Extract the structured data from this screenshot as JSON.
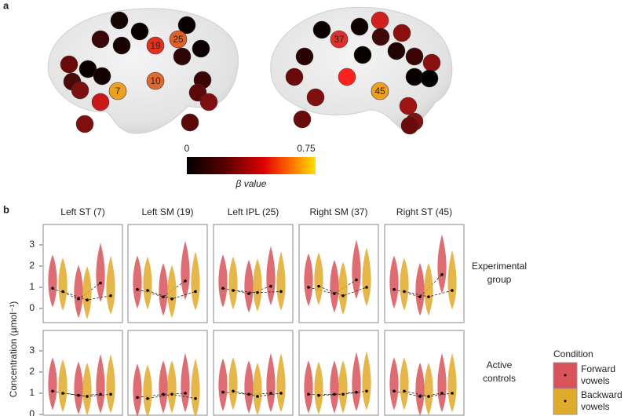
{
  "panel_a": {
    "label": "a",
    "regions": [
      {
        "label": "19",
        "color": "#e0301e"
      },
      {
        "label": "25",
        "color": "#e0602a"
      },
      {
        "label": "7",
        "color": "#f0a020"
      },
      {
        "label": "10",
        "color": "#e0692e"
      },
      {
        "label": "37",
        "color": "#e0302a"
      },
      {
        "label": "45",
        "color": "#f0a020"
      }
    ],
    "colorbar": {
      "min_label": "0",
      "max_label": "0.75",
      "label": "β value"
    }
  },
  "panel_b": {
    "label": "b",
    "columns": [
      "Left ST (7)",
      "Left SM (19)",
      "Left IPL (25)",
      "Right SM (37)",
      "Right ST (45)"
    ],
    "rows": [
      {
        "label": [
          "Experimental",
          "group"
        ]
      },
      {
        "label": [
          "Active",
          "controls"
        ]
      }
    ],
    "y_label": "Concentration (µmol⁻¹)",
    "ylim": [
      -0.3,
      3.6
    ],
    "yticks": [
      0,
      1,
      2,
      3
    ],
    "legend": {
      "title": "Condition",
      "items": [
        {
          "label": [
            "Forward",
            "vowels"
          ],
          "color": "#d8545a"
        },
        {
          "label": [
            "Backward",
            "vowels"
          ],
          "color": "#e0aa2a"
        }
      ]
    },
    "medians": [
      [
        {
          "forward": [
            0.95,
            0.45,
            1.2
          ],
          "backward": [
            0.8,
            0.4,
            0.6
          ]
        },
        {
          "forward": [
            0.9,
            0.55,
            1.3
          ],
          "backward": [
            0.85,
            0.45,
            0.8
          ]
        },
        {
          "forward": [
            0.95,
            0.7,
            1.05
          ],
          "backward": [
            0.85,
            0.75,
            0.8
          ]
        },
        {
          "forward": [
            1.0,
            0.7,
            1.35
          ],
          "backward": [
            1.05,
            0.6,
            1.0
          ]
        },
        {
          "forward": [
            0.9,
            0.55,
            1.6
          ],
          "backward": [
            0.8,
            0.55,
            0.85
          ]
        }
      ],
      [
        {
          "forward": [
            1.1,
            0.9,
            0.95
          ],
          "backward": [
            1.0,
            0.85,
            0.95
          ]
        },
        {
          "forward": [
            0.8,
            0.95,
            1.0
          ],
          "backward": [
            0.75,
            0.95,
            0.75
          ]
        },
        {
          "forward": [
            1.05,
            0.95,
            1.0
          ],
          "backward": [
            1.1,
            0.85,
            1.0
          ]
        },
        {
          "forward": [
            0.95,
            0.95,
            1.05
          ],
          "backward": [
            0.9,
            0.95,
            1.1
          ]
        },
        {
          "forward": [
            1.1,
            0.85,
            1.0
          ],
          "backward": [
            1.1,
            0.85,
            1.0
          ]
        }
      ]
    ]
  }
}
